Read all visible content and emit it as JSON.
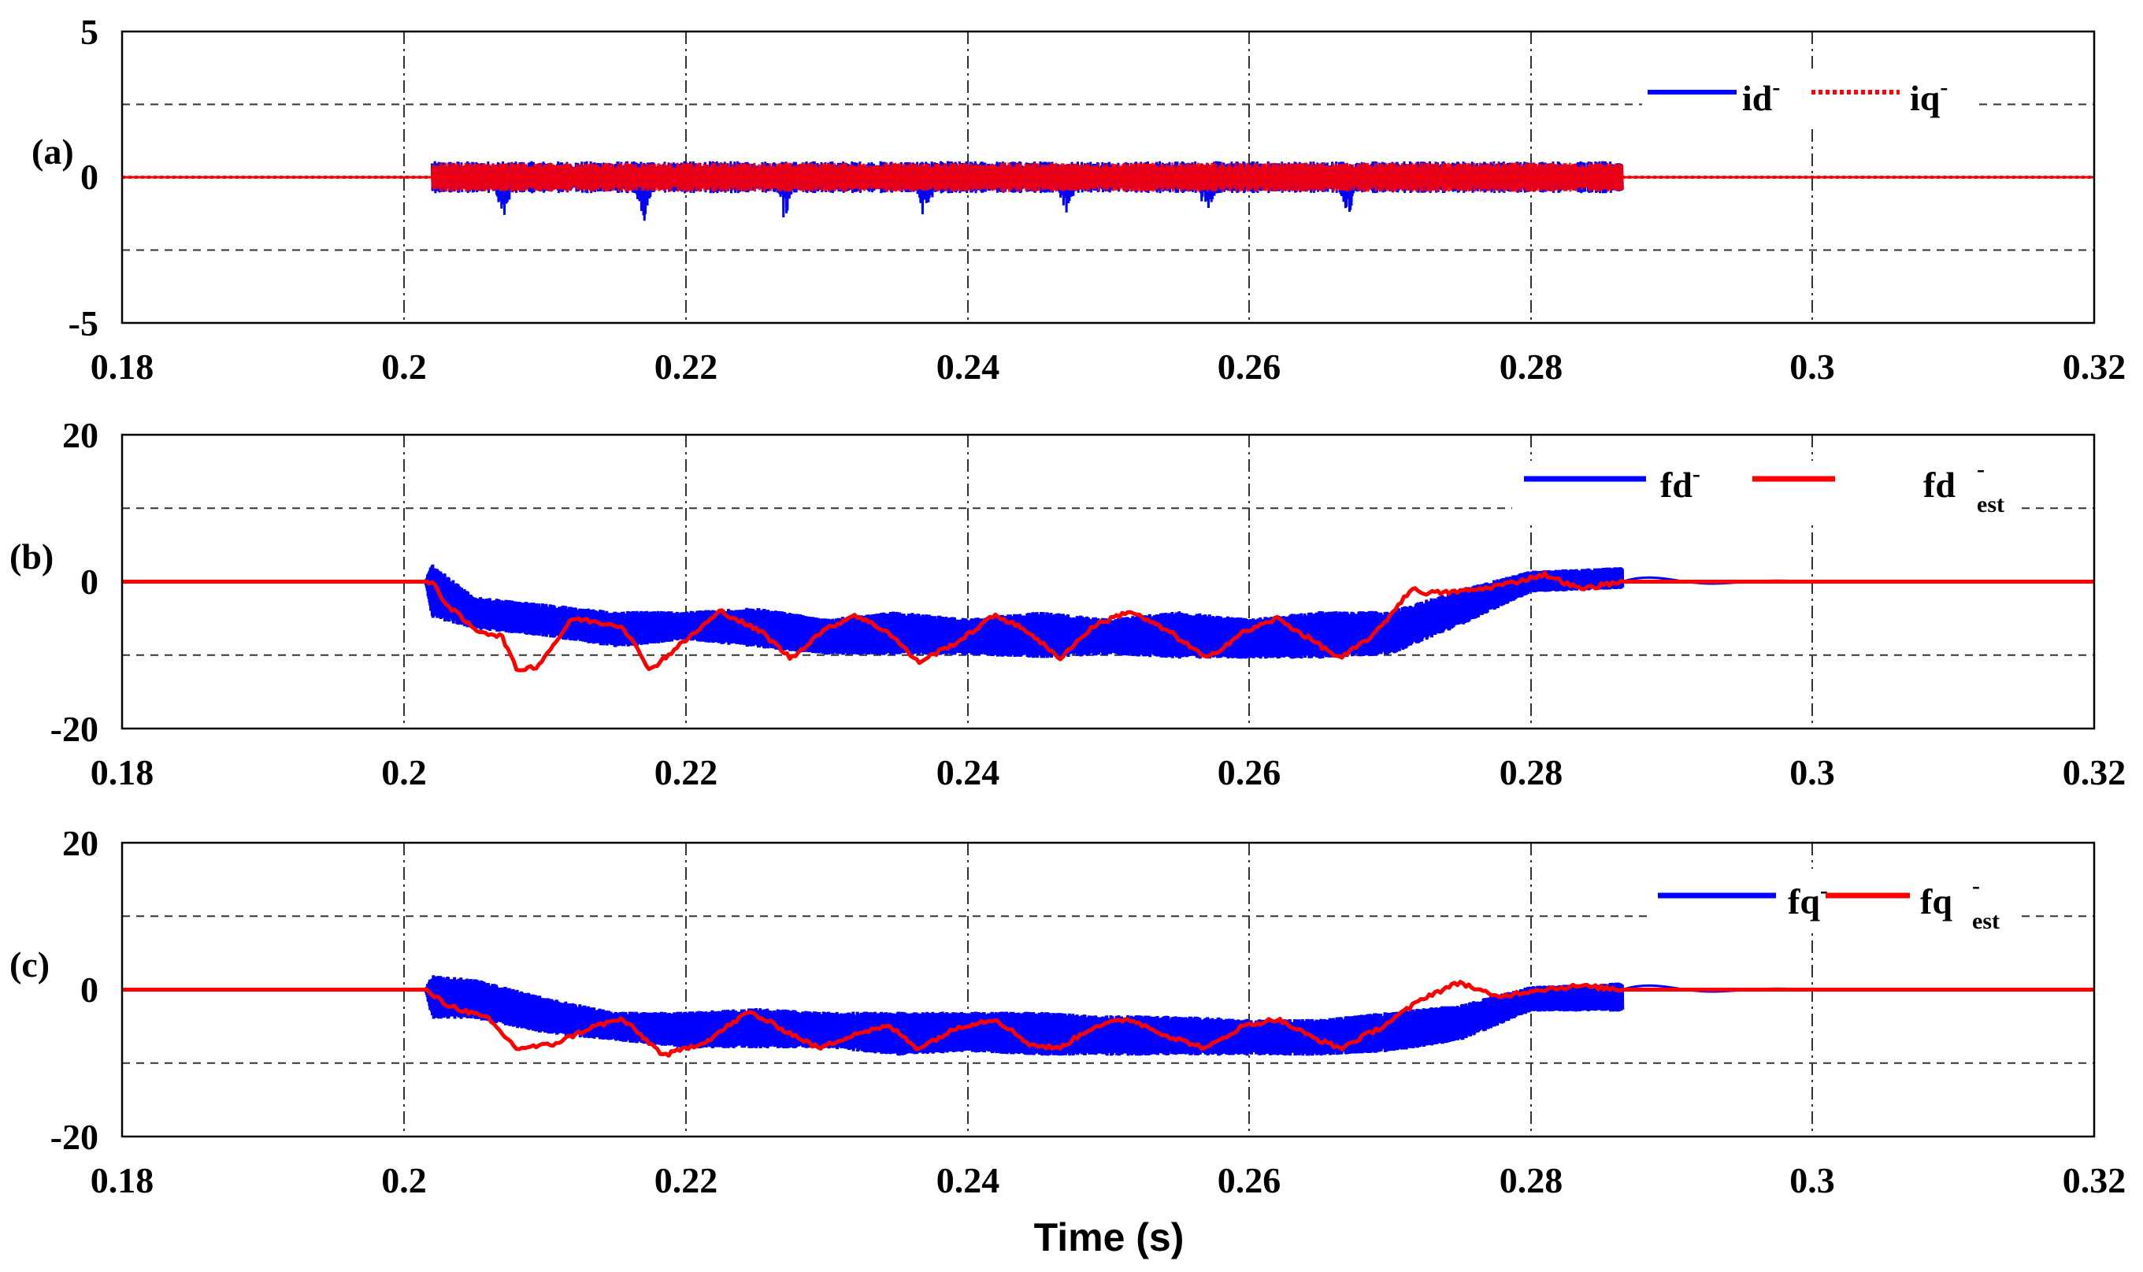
{
  "figure": {
    "xlabel": "Time (s)"
  },
  "chart_data": [
    {
      "type": "line",
      "panel": "(a)",
      "xlim": [
        0.18,
        0.32
      ],
      "ylim": [
        -5,
        5
      ],
      "x_ticks": [
        "0.18",
        "0.2",
        "0.22",
        "0.24",
        "0.26",
        "0.28",
        "0.3",
        "0.32"
      ],
      "y_ticks": [
        "5",
        "0",
        "-5"
      ],
      "y_tick_values": [
        5,
        0,
        -5
      ],
      "grid_y": [
        -2.5,
        2.5
      ],
      "xlabel": "",
      "legend": {
        "position": "top-right",
        "entries": [
          {
            "base": "id",
            "sup": "-",
            "sub": ""
          },
          {
            "base": "iq",
            "sup": "-",
            "sub": ""
          }
        ]
      },
      "series": [
        {
          "name": "id-",
          "color": "#0000ff",
          "style": "solid",
          "kind": "noise_band",
          "active_range": [
            0.202,
            0.2865
          ],
          "center": 0,
          "amplitude": 0.55,
          "dip_times": [
            0.207,
            0.217,
            0.227,
            0.237,
            0.247,
            0.257,
            0.267
          ],
          "dip_depth": 1.7,
          "outside_value": 0
        },
        {
          "name": "iq-",
          "color": "#ff0000",
          "style": "dotted",
          "kind": "noise_band",
          "active_range": [
            0.202,
            0.2865
          ],
          "center": 0,
          "amplitude": 0.5,
          "outside_value": 0
        }
      ]
    },
    {
      "type": "line",
      "panel": "(b)",
      "xlim": [
        0.18,
        0.32
      ],
      "ylim": [
        -20,
        20
      ],
      "x_ticks": [
        "0.18",
        "0.2",
        "0.22",
        "0.24",
        "0.26",
        "0.28",
        "0.3",
        "0.32"
      ],
      "y_ticks": [
        "20",
        "0",
        "-20"
      ],
      "y_tick_values": [
        20,
        0,
        -20
      ],
      "grid_y": [
        -10,
        10
      ],
      "xlabel": "",
      "legend": {
        "position": "top-right",
        "entries": [
          {
            "base": "fd",
            "sup": "-",
            "sub": ""
          },
          {
            "base": "fd",
            "sup": "-",
            "sub": "est"
          }
        ]
      },
      "series": [
        {
          "name": "fd-",
          "color": "#0000ff",
          "kind": "envelope",
          "x": [
            0.2015,
            0.202,
            0.205,
            0.21,
            0.215,
            0.22,
            0.225,
            0.23,
            0.235,
            0.24,
            0.245,
            0.25,
            0.255,
            0.26,
            0.265,
            0.27,
            0.275,
            0.28,
            0.2865
          ],
          "upper": [
            0,
            2.5,
            -2,
            -3,
            -4,
            -4,
            -3.5,
            -5,
            -4,
            -5,
            -4,
            -5,
            -4,
            -5,
            -4,
            -4,
            -1,
            1.5,
            2
          ],
          "lower": [
            0,
            -5,
            -6.5,
            -7.5,
            -9,
            -8,
            -9,
            -10,
            -10,
            -10,
            -10.5,
            -10,
            -10.5,
            -10.5,
            -10.5,
            -10,
            -6,
            -1.5,
            -1
          ]
        },
        {
          "name": "fd-_est",
          "color": "#ff0000",
          "kind": "line",
          "x": [
            0.18,
            0.2,
            0.2015,
            0.2022,
            0.203,
            0.205,
            0.207,
            0.208,
            0.2095,
            0.212,
            0.2155,
            0.2175,
            0.22,
            0.2225,
            0.2255,
            0.2275,
            0.2295,
            0.232,
            0.2345,
            0.2365,
            0.2395,
            0.242,
            0.2445,
            0.2465,
            0.249,
            0.2515,
            0.2545,
            0.257,
            0.2595,
            0.262,
            0.2645,
            0.2665,
            0.269,
            0.2715,
            0.2725,
            0.274,
            0.2765,
            0.279,
            0.281,
            0.2835,
            0.2865,
            0.29,
            0.295,
            0.3,
            0.32
          ],
          "y": [
            0,
            0,
            0,
            -0.5,
            -3,
            -6.5,
            -7.5,
            -12,
            -11.5,
            -5,
            -6,
            -12,
            -8,
            -4,
            -7,
            -10.5,
            -7,
            -4.5,
            -7,
            -11,
            -8,
            -4.5,
            -7,
            -10.5,
            -6,
            -4,
            -7,
            -10.5,
            -7,
            -5,
            -8,
            -10.5,
            -7,
            -1,
            -1.5,
            -1.5,
            -1,
            0,
            1,
            -1,
            0,
            0,
            0,
            0,
            0
          ]
        }
      ]
    },
    {
      "type": "line",
      "panel": "(c)",
      "xlim": [
        0.18,
        0.32
      ],
      "ylim": [
        -20,
        20
      ],
      "x_ticks": [
        "0.18",
        "0.2",
        "0.22",
        "0.24",
        "0.26",
        "0.28",
        "0.3",
        "0.32"
      ],
      "y_ticks": [
        "20",
        "0",
        "-20"
      ],
      "y_tick_values": [
        20,
        0,
        -20
      ],
      "grid_y": [
        -10,
        10
      ],
      "xlabel": "Time (s)",
      "legend": {
        "position": "top-right",
        "entries": [
          {
            "base": "fq",
            "sup": "-",
            "sub": ""
          },
          {
            "base": "fq",
            "sup": "-",
            "sub": "est"
          }
        ]
      },
      "series": [
        {
          "name": "fq-",
          "color": "#0000ff",
          "kind": "envelope",
          "x": [
            0.2015,
            0.202,
            0.205,
            0.21,
            0.215,
            0.22,
            0.225,
            0.23,
            0.235,
            0.24,
            0.245,
            0.25,
            0.255,
            0.26,
            0.265,
            0.27,
            0.275,
            0.28,
            0.2865
          ],
          "upper": [
            0,
            2,
            1.5,
            -1,
            -3,
            -3,
            -2.5,
            -3,
            -3,
            -3,
            -3,
            -3.5,
            -3.5,
            -4,
            -4,
            -3,
            -2,
            0.5,
            1
          ],
          "lower": [
            0,
            -4,
            -4,
            -6,
            -7,
            -8,
            -8,
            -8,
            -9,
            -8.5,
            -9,
            -9,
            -9,
            -9,
            -9,
            -8.5,
            -7,
            -3,
            -3
          ]
        },
        {
          "name": "fq-_est",
          "color": "#ff0000",
          "kind": "line",
          "x": [
            0.18,
            0.2,
            0.2015,
            0.203,
            0.206,
            0.208,
            0.2105,
            0.2135,
            0.2155,
            0.2185,
            0.2215,
            0.2245,
            0.2265,
            0.2295,
            0.232,
            0.2345,
            0.2365,
            0.2395,
            0.242,
            0.2445,
            0.2465,
            0.249,
            0.2515,
            0.2545,
            0.257,
            0.2595,
            0.262,
            0.2645,
            0.2665,
            0.2695,
            0.2725,
            0.275,
            0.2775,
            0.2805,
            0.2835,
            0.2865,
            0.29,
            0.32
          ],
          "y": [
            0,
            0,
            0,
            -2,
            -4,
            -8,
            -7.5,
            -5,
            -4,
            -9,
            -7,
            -3,
            -5,
            -8,
            -6,
            -5,
            -8,
            -5,
            -4,
            -7.5,
            -8,
            -5,
            -4,
            -6.5,
            -8,
            -5,
            -4,
            -6.5,
            -8,
            -5,
            -1,
            1,
            -1,
            0,
            0.5,
            0,
            0,
            0
          ]
        }
      ]
    }
  ]
}
